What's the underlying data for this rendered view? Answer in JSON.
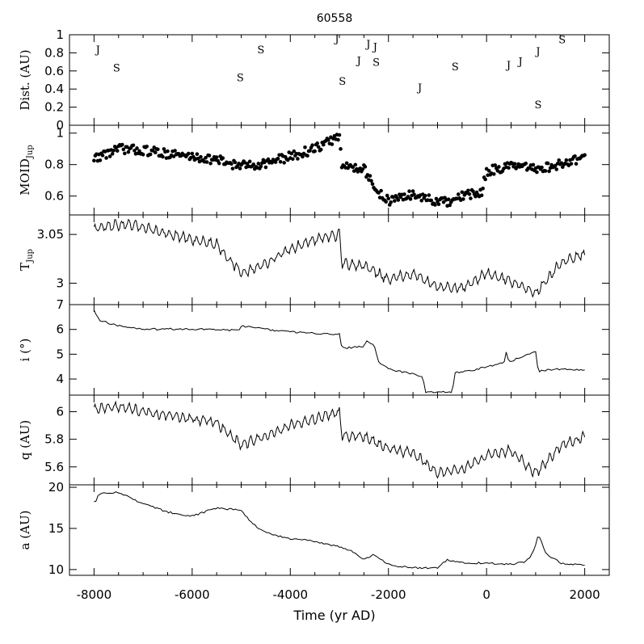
{
  "chart_data": {
    "type": "line",
    "title": "60558",
    "xlabel": "Time (yr AD)",
    "xlim": [
      -8500,
      2500
    ],
    "xticks": [
      -8000,
      -6000,
      -4000,
      -2000,
      0,
      2000
    ],
    "panels": [
      {
        "id": "dist",
        "type": "scatter",
        "ylabel": "Dist. (AU)",
        "ylim": [
          0,
          1
        ],
        "yticks": [
          "0",
          "0.2",
          "0.4",
          "0.6",
          "0.8",
          "1"
        ],
        "markers": [
          {
            "label": "J",
            "x": -7920,
            "y": 0.84
          },
          {
            "label": "S",
            "x": -7540,
            "y": 0.64
          },
          {
            "label": "S",
            "x": -5020,
            "y": 0.53
          },
          {
            "label": "S",
            "x": -4600,
            "y": 0.84
          },
          {
            "label": "J",
            "x": -3050,
            "y": 0.96
          },
          {
            "label": "S",
            "x": -2940,
            "y": 0.49
          },
          {
            "label": "J",
            "x": -2600,
            "y": 0.72
          },
          {
            "label": "J",
            "x": -2410,
            "y": 0.9
          },
          {
            "label": "J",
            "x": -2270,
            "y": 0.87
          },
          {
            "label": "S",
            "x": -2250,
            "y": 0.7
          },
          {
            "label": "J",
            "x": -1360,
            "y": 0.42
          },
          {
            "label": "S",
            "x": -640,
            "y": 0.65
          },
          {
            "label": "J",
            "x": 450,
            "y": 0.67
          },
          {
            "label": "J",
            "x": 690,
            "y": 0.71
          },
          {
            "label": "J",
            "x": 1050,
            "y": 0.82
          },
          {
            "label": "S",
            "x": 1050,
            "y": 0.23
          },
          {
            "label": "S",
            "x": 1540,
            "y": 0.95
          }
        ]
      },
      {
        "id": "moid",
        "type": "scatter",
        "ylabel": "MOID",
        "ylabel_sub": "Jup",
        "ylim": [
          0.48,
          1.05
        ],
        "yticks": [
          "0.6",
          "0.8",
          "1"
        ],
        "points_keyframes": {
          "x": [
            -8000,
            -7500,
            -7000,
            -6500,
            -6000,
            -5500,
            -5000,
            -4500,
            -4000,
            -3500,
            -3000,
            -2950,
            -2500,
            -2300,
            -2000,
            -1500,
            -1000,
            -700,
            -500,
            -100,
            0,
            500,
            1000,
            1500,
            2000
          ],
          "y": [
            0.84,
            0.9,
            0.89,
            0.87,
            0.85,
            0.83,
            0.79,
            0.81,
            0.85,
            0.9,
            0.98,
            0.79,
            0.78,
            0.65,
            0.57,
            0.61,
            0.56,
            0.56,
            0.6,
            0.62,
            0.76,
            0.79,
            0.77,
            0.8,
            0.85
          ]
        }
      },
      {
        "id": "tjup",
        "type": "line",
        "ylabel": "T",
        "ylabel_sub": "Jup",
        "ylim": [
          2.978,
          3.07
        ],
        "yticks": [
          "3",
          "3.05"
        ],
        "keyframes": {
          "x": [
            -8000,
            -7500,
            -7000,
            -6500,
            -6000,
            -5500,
            -5000,
            -4500,
            -4000,
            -3500,
            -3000,
            -2950,
            -2500,
            -2000,
            -1500,
            -1000,
            -500,
            0,
            500,
            1000,
            1500,
            2000
          ],
          "y": [
            3.056,
            3.06,
            3.058,
            3.05,
            3.045,
            3.04,
            3.01,
            3.02,
            3.035,
            3.045,
            3.05,
            3.02,
            3.018,
            3.004,
            3.01,
            2.996,
            2.995,
            3.01,
            3.002,
            2.99,
            3.02,
            3.03
          ]
        }
      },
      {
        "id": "incl",
        "type": "line",
        "ylabel": "i (°)",
        "ylim": [
          3.35,
          7.0
        ],
        "yticks": [
          "4",
          "5",
          "6",
          "7"
        ],
        "keyframes": {
          "x": [
            -8000,
            -7950,
            -7900,
            -7700,
            -7500,
            -7000,
            -6500,
            -5500,
            -5050,
            -5000,
            -4500,
            -4000,
            -3500,
            -3000,
            -2950,
            -2500,
            -2450,
            -2300,
            -2200,
            -2000,
            -1500,
            -1300,
            -1250,
            -1000,
            -700,
            -650,
            -300,
            0,
            350,
            400,
            450,
            600,
            1000,
            1050,
            1150,
            1500,
            2000
          ],
          "y": [
            6.8,
            6.6,
            6.4,
            6.25,
            6.15,
            6.0,
            6.02,
            6.0,
            5.95,
            6.15,
            6.0,
            5.9,
            5.85,
            5.8,
            5.25,
            5.3,
            5.55,
            5.4,
            4.7,
            4.4,
            4.2,
            4.1,
            3.45,
            3.5,
            3.45,
            4.25,
            4.35,
            4.5,
            4.65,
            5.05,
            4.7,
            4.8,
            5.1,
            4.3,
            4.35,
            4.4,
            4.35
          ]
        }
      },
      {
        "id": "q",
        "type": "line",
        "ylabel": "q (AU)",
        "ylim": [
          5.47,
          6.12
        ],
        "yticks": [
          "5.6",
          "5.8",
          "6"
        ],
        "keyframes": {
          "x": [
            -8000,
            -7500,
            -7000,
            -6500,
            -6000,
            -5500,
            -5000,
            -4500,
            -4000,
            -3500,
            -3000,
            -2950,
            -2500,
            -2000,
            -1500,
            -1000,
            -500,
            0,
            500,
            1000,
            1500,
            2000
          ],
          "y": [
            6.02,
            6.04,
            6.0,
            5.97,
            5.95,
            5.92,
            5.76,
            5.82,
            5.9,
            5.95,
            6.0,
            5.83,
            5.82,
            5.73,
            5.7,
            5.56,
            5.58,
            5.68,
            5.72,
            5.55,
            5.75,
            5.82
          ]
        }
      },
      {
        "id": "a",
        "type": "line",
        "ylabel": "a (AU)",
        "ylim": [
          9.3,
          20.3
        ],
        "yticks": [
          "10",
          "15",
          "20"
        ],
        "keyframes": {
          "x": [
            -8000,
            -7950,
            -7900,
            -7500,
            -7000,
            -6500,
            -6000,
            -5500,
            -5000,
            -4800,
            -4600,
            -4500,
            -4000,
            -3600,
            -3000,
            -2800,
            -2500,
            -2300,
            -2000,
            -1800,
            -1500,
            -1000,
            -800,
            -500,
            0,
            500,
            800,
            900,
            1000,
            1050,
            1100,
            1200,
            1500,
            2000
          ],
          "y": [
            18.3,
            18.4,
            19.2,
            19.4,
            18.0,
            17.0,
            16.5,
            17.5,
            17.2,
            15.8,
            14.8,
            14.5,
            13.7,
            13.5,
            12.8,
            12.4,
            11.2,
            11.8,
            10.6,
            10.4,
            10.2,
            10.2,
            11.2,
            10.8,
            10.8,
            10.6,
            11.0,
            11.5,
            13.0,
            14.2,
            13.8,
            12.0,
            10.8,
            10.5
          ]
        }
      }
    ]
  }
}
